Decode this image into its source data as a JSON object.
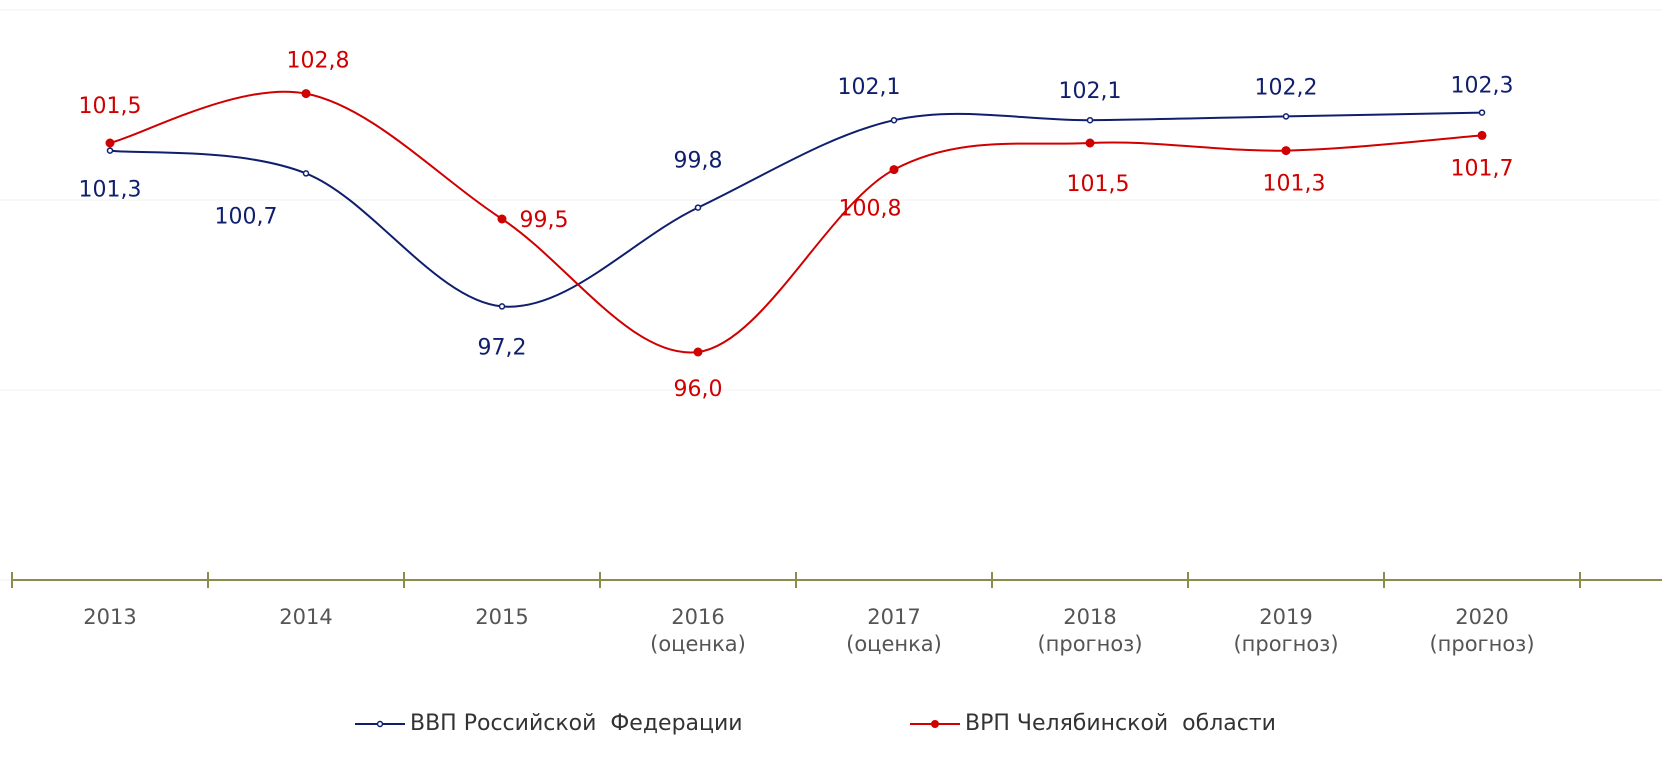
{
  "chart_data": {
    "type": "line",
    "categories": [
      "2013",
      "2014",
      "2015",
      "2016\n(оценка)",
      "2017\n(оценка)",
      "2018\n(прогноз)",
      "2019\n(прогноз)",
      "2020\n(прогноз)"
    ],
    "series": [
      {
        "name": "ВВП Российской  Федерации",
        "color": "#0f1f6e",
        "values": [
          101.3,
          100.7,
          97.2,
          99.8,
          102.1,
          102.1,
          102.2,
          102.3
        ],
        "value_labels": [
          "101,3",
          "100,7",
          "97,2",
          "99,8",
          "102,1",
          "102,1",
          "102,2",
          "102,3"
        ]
      },
      {
        "name": "ВРП Челябинской  области",
        "color": "#d00000",
        "values": [
          101.5,
          102.8,
          99.5,
          96.0,
          100.8,
          101.5,
          101.3,
          101.7
        ],
        "value_labels": [
          "101,5",
          "102,8",
          "99,5",
          "96,0",
          "100,8",
          "101,5",
          "101,3",
          "101,7"
        ]
      }
    ],
    "ylim": [
      90,
      105
    ],
    "yticks": [
      90,
      95,
      100,
      105
    ],
    "grid": true,
    "legend": "bottom"
  }
}
